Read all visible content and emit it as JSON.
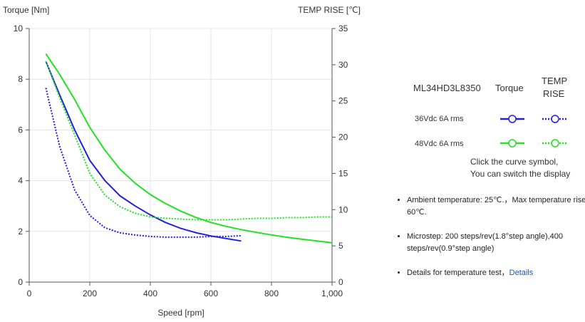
{
  "chart_data": {
    "type": "line",
    "xlabel": "Speed [rpm]",
    "ylabel": "Torque  [Nm]",
    "y2label": "TEMP RISE [℃]",
    "xlim": [
      0,
      1000
    ],
    "ylim": [
      0,
      10
    ],
    "y2lim": [
      0,
      35
    ],
    "xticks": [
      "0",
      "200",
      "400",
      "600",
      "800",
      "1,000"
    ],
    "yticks": [
      "0",
      "2",
      "4",
      "6",
      "8",
      "10"
    ],
    "y2ticks": [
      "0",
      "5",
      "10",
      "15",
      "20",
      "25",
      "30",
      "35"
    ],
    "grid": true,
    "series": [
      {
        "name": "36Vdc 6A rms Torque",
        "axis": "left",
        "color": "#1f1fe0",
        "dash": "solid",
        "x": [
          55,
          100,
          150,
          200,
          250,
          300,
          350,
          400,
          450,
          500,
          550,
          600,
          650,
          700
        ],
        "y": [
          8.7,
          7.4,
          6.0,
          4.8,
          4.0,
          3.4,
          3.0,
          2.65,
          2.35,
          2.12,
          1.95,
          1.82,
          1.72,
          1.62
        ]
      },
      {
        "name": "36Vdc 6A rms TEMP RISE",
        "axis": "right",
        "color": "#1f1fe0",
        "dash": "dotted",
        "x": [
          55,
          100,
          150,
          200,
          250,
          300,
          350,
          400,
          450,
          500,
          550,
          600,
          650,
          700
        ],
        "y": [
          26.8,
          18.8,
          12.7,
          9.2,
          7.5,
          6.8,
          6.5,
          6.3,
          6.2,
          6.2,
          6.2,
          6.3,
          6.3,
          6.4
        ]
      },
      {
        "name": "48Vdc 6A rms Torque",
        "axis": "left",
        "color": "#22e022",
        "dash": "solid",
        "x": [
          55,
          100,
          150,
          200,
          250,
          300,
          350,
          400,
          450,
          500,
          550,
          600,
          650,
          700,
          750,
          800,
          850,
          900,
          950,
          1000
        ],
        "y": [
          9.0,
          8.2,
          7.2,
          6.1,
          5.2,
          4.45,
          3.9,
          3.45,
          3.1,
          2.8,
          2.55,
          2.35,
          2.2,
          2.07,
          1.96,
          1.86,
          1.77,
          1.69,
          1.62,
          1.55
        ]
      },
      {
        "name": "48Vdc 6A rms TEMP RISE",
        "axis": "right",
        "color": "#22e022",
        "dash": "dotted",
        "x": [
          55,
          100,
          150,
          200,
          250,
          300,
          350,
          400,
          450,
          500,
          550,
          600,
          650,
          700,
          750,
          800,
          850,
          900,
          950,
          1000
        ],
        "y": [
          30.5,
          25.5,
          20.3,
          15.0,
          12.0,
          10.4,
          9.5,
          9.0,
          8.8,
          8.7,
          8.6,
          8.6,
          8.6,
          8.7,
          8.8,
          8.8,
          8.9,
          8.9,
          9.0,
          9.0
        ]
      }
    ]
  },
  "legend": {
    "model": "ML34HD3L8350",
    "torque_header": "Torque",
    "temp_header_1": "TEMP",
    "temp_header_2": "RISE",
    "rows": [
      {
        "label": "36Vdc   6A rms",
        "color": "#1f1fe0"
      },
      {
        "label": "48Vdc   6A rms",
        "color": "#22e022"
      }
    ]
  },
  "hint": {
    "line1": "Click the curve symbol,",
    "line2": "You can switch the display"
  },
  "notes": {
    "ambient": "Ambient temperature: 25℃.，Max temperature rise: 60℃.",
    "microstep": "Microstep: 200 steps/rev(1.8°step angle),400 steps/rev(0.9°step angle)",
    "details_prefix": "Details for temperature test，",
    "details_link": "Details"
  }
}
